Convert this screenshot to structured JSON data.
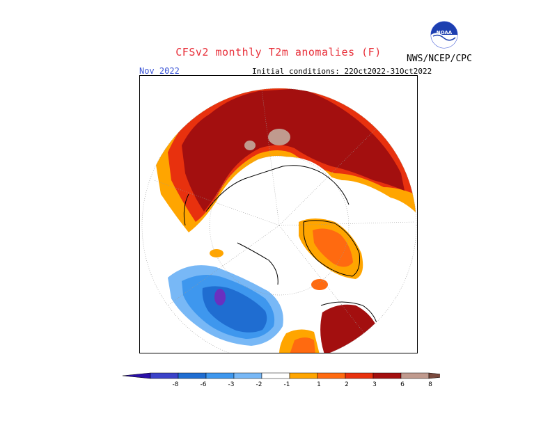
{
  "header": {
    "title": "CFSv2 monthly T2m anomalies (F)",
    "month": "Nov 2022",
    "initial_conditions": "Initial conditions: 22Oct2022-31Oct2022",
    "agency": "NWS/NCEP/CPC",
    "logo_text": "NOAA"
  },
  "colorbar": {
    "bins": [
      {
        "color": "#2a0fa8"
      },
      {
        "color": "#3b42c9"
      },
      {
        "color": "#1f6dd1"
      },
      {
        "color": "#3e97ee"
      },
      {
        "color": "#78b8f6"
      },
      {
        "color": "#ffffff"
      },
      {
        "color": "#ffa500"
      },
      {
        "color": "#ff6a10"
      },
      {
        "color": "#e8310e"
      },
      {
        "color": "#a30f0f"
      },
      {
        "color": "#c09a8e"
      },
      {
        "color": "#7a4a3e"
      }
    ],
    "labels": [
      "-8",
      "-6",
      "-3",
      "-2",
      "-1",
      "1",
      "2",
      "3",
      "6",
      "8"
    ]
  },
  "map": {
    "projection": "north polar stereographic",
    "colors": {
      "warm_strong": "#a30f0f",
      "warm_mid": "#e8310e",
      "warm_light": "#ffa500",
      "warm_extreme": "#c09a8e",
      "cold_light": "#78b8f6",
      "cold_mid": "#3e97ee",
      "cold_strong": "#1f6dd1",
      "cold_extreme": "#3b42c9",
      "cold_max": "#6a30c0"
    }
  }
}
